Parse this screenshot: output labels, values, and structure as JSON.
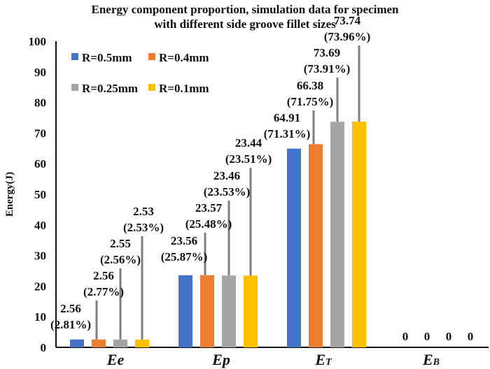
{
  "chart_data": {
    "type": "bar",
    "title": [
      "Energy component proportion, simulation data for specimen",
      "with different side groove fillet sizes"
    ],
    "xlabel": "",
    "ylabel": "Energy(J)",
    "ylim": [
      0,
      100
    ],
    "yticks": [
      0,
      10,
      20,
      30,
      40,
      50,
      60,
      70,
      80,
      90,
      100
    ],
    "grid": false,
    "legend_position": "top-left",
    "categories": [
      {
        "main": "E",
        "sub": "e"
      },
      {
        "main": "E",
        "sub": "p"
      },
      {
        "main": "E",
        "sub": "T"
      },
      {
        "main": "E",
        "sub": "B"
      }
    ],
    "series": [
      {
        "name": "R=0.5mm",
        "color": "#4472C4",
        "values": [
          2.56,
          23.56,
          64.91,
          0
        ],
        "labels": [
          [
            "2.56",
            "(2.81%)"
          ],
          [
            "23.56",
            "(25.87%)"
          ],
          [
            "64.91",
            "(71.31%)"
          ],
          [
            "0"
          ]
        ]
      },
      {
        "name": "R=0.4mm",
        "color": "#ED7D31",
        "values": [
          2.56,
          23.57,
          66.38,
          0
        ],
        "labels": [
          [
            "2.56",
            "(2.77%)"
          ],
          [
            "23.57",
            "(25.48%)"
          ],
          [
            "66.38",
            "(71.75%)"
          ],
          [
            "0"
          ]
        ]
      },
      {
        "name": "R=0.25mm",
        "color": "#A5A5A5",
        "values": [
          2.55,
          23.46,
          73.69,
          0
        ],
        "labels": [
          [
            "2.55",
            "(2.56%)"
          ],
          [
            "23.46",
            "(23.53%)"
          ],
          [
            "73.69",
            "(73.91%)"
          ],
          [
            "0"
          ]
        ]
      },
      {
        "name": "R=0.1mm",
        "color": "#FFC000",
        "values": [
          2.53,
          23.44,
          73.74,
          0
        ],
        "labels": [
          [
            "2.53",
            "(2.53%)"
          ],
          [
            "23.44",
            "(23.51%)"
          ],
          [
            "73.74",
            "(73.96%)"
          ],
          [
            "0"
          ]
        ]
      }
    ],
    "leader_line_color": "#7F7F7F"
  }
}
